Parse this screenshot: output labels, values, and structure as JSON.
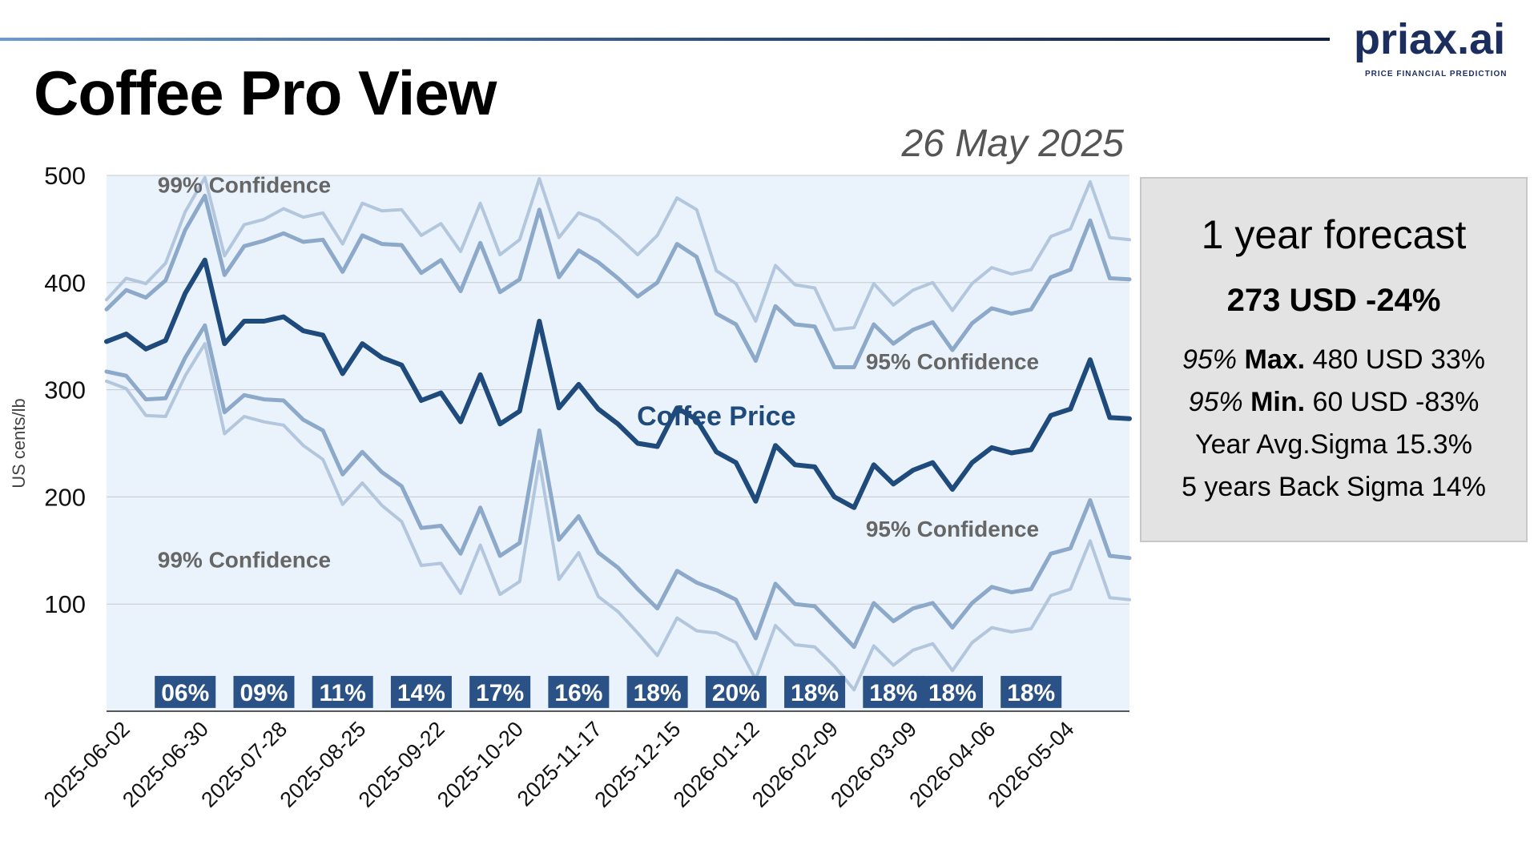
{
  "header": {
    "title": "Coffee Pro View",
    "date": "26 May 2025",
    "logo": {
      "name": "priax.ai",
      "tagline": "PRICE FINANCIAL PREDICTION"
    }
  },
  "forecast": {
    "title": "1 year forecast",
    "headline": "273 USD -24%",
    "lines": [
      {
        "prefix": "95%",
        "label": "Max.",
        "value": "480 USD 33%"
      },
      {
        "prefix": "95%",
        "label": "Min.",
        "value": "60 USD -83%"
      },
      {
        "prefix": "",
        "label": "",
        "value": "Year Avg.Sigma 15.3%"
      },
      {
        "prefix": "",
        "label": "",
        "value": "5 years Back Sigma 14%"
      }
    ]
  },
  "colors": {
    "price": "#1f4a7c",
    "band95": "#8ca9c9",
    "band99": "#b2c6dd",
    "plot_bg": "#eaf2fb",
    "badge_bg": "#2a5286",
    "label_grey": "#666666"
  },
  "chart_data": {
    "type": "line",
    "ylabel": "US cents/lb",
    "ylim": [
      0,
      500
    ],
    "yticks": [
      100,
      200,
      300,
      400,
      500
    ],
    "grid": true,
    "x_tick_labels": [
      "2025-06-02",
      "2025-06-30",
      "2025-07-28",
      "2025-08-25",
      "2025-09-22",
      "2025-10-20",
      "2025-11-17",
      "2025-12-15",
      "2026-01-12",
      "2026-02-09",
      "2026-03-09",
      "2026-04-06",
      "2026-05-04"
    ],
    "x": [
      "2025-05-26",
      "2025-06-02",
      "2025-06-09",
      "2025-06-16",
      "2025-06-23",
      "2025-06-30",
      "2025-07-07",
      "2025-07-14",
      "2025-07-21",
      "2025-07-28",
      "2025-08-04",
      "2025-08-11",
      "2025-08-18",
      "2025-08-25",
      "2025-09-01",
      "2025-09-08",
      "2025-09-15",
      "2025-09-22",
      "2025-09-29",
      "2025-10-06",
      "2025-10-13",
      "2025-10-20",
      "2025-10-27",
      "2025-11-03",
      "2025-11-10",
      "2025-11-17",
      "2025-11-24",
      "2025-12-01",
      "2025-12-08",
      "2025-12-15",
      "2025-12-22",
      "2025-12-29",
      "2026-01-05",
      "2026-01-12",
      "2026-01-19",
      "2026-01-26",
      "2026-02-02",
      "2026-02-09",
      "2026-02-16",
      "2026-02-23",
      "2026-03-02",
      "2026-03-09",
      "2026-03-16",
      "2026-03-23",
      "2026-03-30",
      "2026-04-06",
      "2026-04-13",
      "2026-04-20",
      "2026-04-27",
      "2026-05-04",
      "2026-05-11",
      "2026-05-18",
      "2026-05-25"
    ],
    "series": [
      {
        "name": "Coffee Price",
        "role": "price",
        "values": [
          345,
          352,
          338,
          346,
          390,
          421,
          343,
          364,
          364,
          368,
          355,
          351,
          315,
          343,
          330,
          323,
          290,
          297,
          270,
          314,
          268,
          280,
          364,
          283,
          305,
          282,
          268,
          250,
          247,
          283,
          272,
          242,
          232,
          196,
          248,
          230,
          228,
          200,
          190,
          230,
          212,
          225,
          232,
          207,
          232,
          246,
          241,
          244,
          276,
          282,
          328,
          274,
          273
        ]
      },
      {
        "name": "95% Confidence",
        "role": "upper95",
        "values": [
          375,
          393,
          386,
          402,
          449,
          481,
          407,
          434,
          439,
          446,
          438,
          440,
          410,
          444,
          436,
          435,
          409,
          421,
          392,
          437,
          391,
          403,
          468,
          405,
          430,
          419,
          404,
          387,
          400,
          436,
          424,
          371,
          361,
          327,
          378,
          361,
          359,
          321,
          321,
          361,
          343,
          356,
          363,
          337,
          362,
          376,
          371,
          375,
          405,
          412,
          458,
          404,
          403
        ]
      },
      {
        "name": "95% Confidence",
        "role": "lower95",
        "values": [
          317,
          313,
          291,
          292,
          330,
          360,
          279,
          295,
          291,
          290,
          272,
          262,
          221,
          242,
          223,
          210,
          171,
          173,
          147,
          190,
          145,
          157,
          262,
          160,
          182,
          148,
          134,
          114,
          96,
          131,
          120,
          113,
          104,
          68,
          119,
          100,
          98,
          79,
          60,
          101,
          84,
          96,
          101,
          78,
          101,
          116,
          111,
          114,
          147,
          152,
          197,
          145,
          143
        ]
      },
      {
        "name": "99% Confidence",
        "role": "upper99",
        "values": [
          384,
          404,
          399,
          418,
          466,
          498,
          425,
          454,
          459,
          469,
          461,
          465,
          436,
          474,
          467,
          468,
          444,
          455,
          429,
          474,
          426,
          440,
          497,
          442,
          465,
          458,
          443,
          426,
          444,
          479,
          468,
          411,
          399,
          364,
          416,
          398,
          395,
          356,
          358,
          399,
          379,
          393,
          400,
          374,
          399,
          414,
          408,
          412,
          443,
          450,
          494,
          442,
          440
        ]
      },
      {
        "name": "99% Confidence",
        "role": "lower99",
        "values": [
          308,
          301,
          276,
          275,
          313,
          343,
          259,
          275,
          270,
          267,
          248,
          235,
          193,
          213,
          192,
          177,
          136,
          138,
          110,
          155,
          109,
          121,
          233,
          123,
          148,
          107,
          93,
          73,
          52,
          87,
          75,
          73,
          64,
          30,
          80,
          62,
          60,
          42,
          20,
          61,
          43,
          57,
          63,
          38,
          64,
          78,
          74,
          77,
          108,
          114,
          159,
          106,
          104
        ]
      }
    ],
    "annotations": [
      {
        "text": "99% Confidence",
        "x": "2025-07-14",
        "y": 484,
        "color": "#666666"
      },
      {
        "text": "95% Confidence",
        "x": "2026-03-23",
        "y": 319,
        "color": "#666666"
      },
      {
        "text": "Coffee Price",
        "x": "2025-12-29",
        "y": 267,
        "color": "#1f4a7c"
      },
      {
        "text": "95% Confidence",
        "x": "2026-03-23",
        "y": 163,
        "color": "#666666"
      },
      {
        "text": "99% Confidence",
        "x": "2025-07-14",
        "y": 134,
        "color": "#666666"
      }
    ],
    "badges": [
      {
        "text": "06%",
        "x": "2025-06-23"
      },
      {
        "text": "09%",
        "x": "2025-07-21"
      },
      {
        "text": "11%",
        "x": "2025-08-18"
      },
      {
        "text": "14%",
        "x": "2025-09-15"
      },
      {
        "text": "17%",
        "x": "2025-10-13"
      },
      {
        "text": "16%",
        "x": "2025-11-10"
      },
      {
        "text": "18%",
        "x": "2025-12-08"
      },
      {
        "text": "20%",
        "x": "2026-01-05"
      },
      {
        "text": "18%",
        "x": "2026-02-02"
      },
      {
        "text": "18%",
        "x": "2026-03-02"
      },
      {
        "text": "18%",
        "x": "2026-03-23"
      },
      {
        "text": "18%",
        "x": "2026-04-20"
      }
    ],
    "badge_y": 18
  }
}
